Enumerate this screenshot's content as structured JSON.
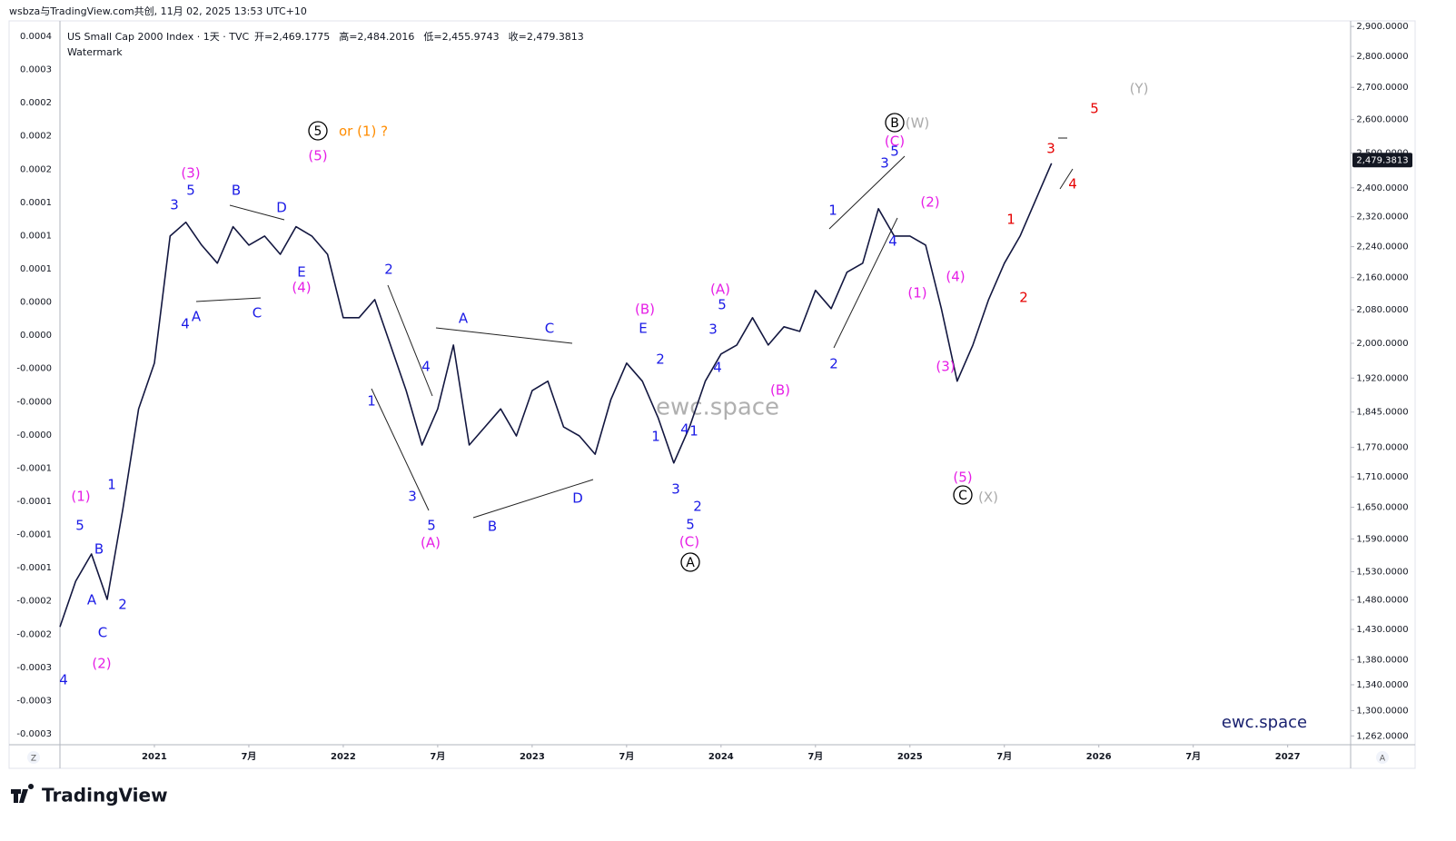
{
  "header": {
    "text": "wsbza与TradingView.com共创, 11月 02, 2025 13:53 UTC+10"
  },
  "chart_data": {
    "type": "line",
    "title": "US Small Cap 2000 Index · 1天 · TVC",
    "ohlc_labels": [
      "开=2,469.1775",
      "高=2,484.2016",
      "低=2,455.9743",
      "收=2,479.3813"
    ],
    "subtitle": "Watermark",
    "color": "#131740",
    "x": [
      "2020-07",
      "2020-08",
      "2020-09",
      "2020-10",
      "2020-11",
      "2020-12",
      "2021-01",
      "2021-02",
      "2021-03",
      "2021-04",
      "2021-05",
      "2021-06",
      "2021-07",
      "2021-08",
      "2021-09",
      "2021-10",
      "2021-11",
      "2021-12",
      "2022-01",
      "2022-02",
      "2022-03",
      "2022-04",
      "2022-05",
      "2022-06",
      "2022-07",
      "2022-08",
      "2022-09",
      "2022-10",
      "2022-11",
      "2022-12",
      "2023-01",
      "2023-02",
      "2023-03",
      "2023-04",
      "2023-05",
      "2023-06",
      "2023-07",
      "2023-08",
      "2023-09",
      "2023-10",
      "2023-11",
      "2023-12",
      "2024-01",
      "2024-02",
      "2024-03",
      "2024-04",
      "2024-05",
      "2024-06",
      "2024-07",
      "2024-08",
      "2024-09",
      "2024-10",
      "2024-11",
      "2024-12",
      "2025-01",
      "2025-02",
      "2025-03",
      "2025-04",
      "2025-05",
      "2025-06",
      "2025-07",
      "2025-08",
      "2025-09",
      "2025-10"
    ],
    "values": [
      1434,
      1513,
      1562,
      1481,
      1647,
      1852,
      1954,
      2268,
      2305,
      2244,
      2197,
      2293,
      2244,
      2268,
      2220,
      2293,
      2268,
      2220,
      2061,
      2061,
      2105,
      1996,
      1892,
      1775,
      1852,
      1996,
      1775,
      1813,
      1852,
      1794,
      1892,
      1913,
      1813,
      1794,
      1756,
      1872,
      1954,
      1913,
      1833,
      1738,
      1813,
      1913,
      1975,
      1996,
      2061,
      1996,
      2039,
      2028,
      2128,
      2083,
      2174,
      2197,
      2342,
      2268,
      2268,
      2244,
      2083,
      1913,
      1996,
      2105,
      2197,
      2268,
      2367,
      2470
    ],
    "xlim": [
      "2020-07",
      "2027-05"
    ],
    "xticks": [
      {
        "value": "2021-01",
        "label": "2021"
      },
      {
        "value": "2021-07",
        "label": "7月"
      },
      {
        "value": "2022-01",
        "label": "2022"
      },
      {
        "value": "2022-07",
        "label": "7月"
      },
      {
        "value": "2023-01",
        "label": "2023"
      },
      {
        "value": "2023-07",
        "label": "7月"
      },
      {
        "value": "2024-01",
        "label": "2024"
      },
      {
        "value": "2024-07",
        "label": "7月"
      },
      {
        "value": "2025-01",
        "label": "2025"
      },
      {
        "value": "2025-07",
        "label": "7月"
      },
      {
        "value": "2026-01",
        "label": "2026"
      },
      {
        "value": "2026-07",
        "label": "7月"
      },
      {
        "value": "2027-01",
        "label": "2027"
      }
    ],
    "ylim": [
      1249,
      2919
    ],
    "log_scale": true,
    "yticks": [
      {
        "value": 2900,
        "label": "2,900.0000"
      },
      {
        "value": 2800,
        "label": "2,800.0000"
      },
      {
        "value": 2700,
        "label": "2,700.0000"
      },
      {
        "value": 2600,
        "label": "2,600.0000"
      },
      {
        "value": 2500,
        "label": "2,500.0000"
      },
      {
        "value": 2400,
        "label": "2,400.0000"
      },
      {
        "value": 2320,
        "label": "2,320.0000"
      },
      {
        "value": 2240,
        "label": "2,240.0000"
      },
      {
        "value": 2160,
        "label": "2,160.0000"
      },
      {
        "value": 2080,
        "label": "2,080.0000"
      },
      {
        "value": 2000,
        "label": "2,000.0000"
      },
      {
        "value": 1920,
        "label": "1,920.0000"
      },
      {
        "value": 1845,
        "label": "1,845.0000"
      },
      {
        "value": 1770,
        "label": "1,770.0000"
      },
      {
        "value": 1710,
        "label": "1,710.0000"
      },
      {
        "value": 1650,
        "label": "1,650.0000"
      },
      {
        "value": 1590,
        "label": "1,590.0000"
      },
      {
        "value": 1530,
        "label": "1,530.0000"
      },
      {
        "value": 1480,
        "label": "1,480.0000"
      },
      {
        "value": 1430,
        "label": "1,430.0000"
      },
      {
        "value": 1380,
        "label": "1,380.0000"
      },
      {
        "value": 1340,
        "label": "1,340.0000"
      },
      {
        "value": 1300,
        "label": "1,300.0000"
      },
      {
        "value": 1262,
        "label": "1,262.0000"
      }
    ],
    "last_price": {
      "value": 2479.3813,
      "label": "2,479.3813"
    },
    "grid": false,
    "annotations": [
      {
        "text": "4",
        "color": "#1a1ae6"
      },
      {
        "text": "5",
        "color": "#1a1ae6"
      },
      {
        "text": "B",
        "color": "#1a1ae6"
      },
      {
        "text": "A",
        "color": "#1a1ae6"
      },
      {
        "text": "C",
        "color": "#1a1ae6"
      },
      {
        "text": "2",
        "color": "#1a1ae6"
      },
      {
        "text": "1",
        "color": "#1a1ae6"
      },
      {
        "text": "3",
        "color": "#1a1ae6"
      },
      {
        "text": "5",
        "color": "#1a1ae6"
      },
      {
        "text": "4",
        "color": "#1a1ae6"
      },
      {
        "text": "A",
        "color": "#1a1ae6"
      },
      {
        "text": "B",
        "color": "#1a1ae6"
      },
      {
        "text": "C",
        "color": "#1a1ae6"
      },
      {
        "text": "D",
        "color": "#1a1ae6"
      },
      {
        "text": "E",
        "color": "#1a1ae6"
      },
      {
        "text": "2",
        "color": "#1a1ae6"
      },
      {
        "text": "1",
        "color": "#1a1ae6"
      },
      {
        "text": "4",
        "color": "#1a1ae6"
      },
      {
        "text": "3",
        "color": "#1a1ae6"
      },
      {
        "text": "5",
        "color": "#1a1ae6"
      },
      {
        "text": "A",
        "color": "#1a1ae6"
      },
      {
        "text": "B",
        "color": "#1a1ae6"
      },
      {
        "text": "C",
        "color": "#1a1ae6"
      },
      {
        "text": "D",
        "color": "#1a1ae6"
      },
      {
        "text": "E",
        "color": "#1a1ae6"
      },
      {
        "text": "2",
        "color": "#1a1ae6"
      },
      {
        "text": "1",
        "color": "#1a1ae6"
      },
      {
        "text": "4",
        "color": "#1a1ae6"
      },
      {
        "text": "1",
        "color": "#1a1ae6"
      },
      {
        "text": "3",
        "color": "#1a1ae6"
      },
      {
        "text": "2",
        "color": "#1a1ae6"
      },
      {
        "text": "5",
        "color": "#1a1ae6"
      },
      {
        "text": "5",
        "color": "#1a1ae6"
      },
      {
        "text": "3",
        "color": "#1a1ae6"
      },
      {
        "text": "4",
        "color": "#1a1ae6"
      },
      {
        "text": "1",
        "color": "#1a1ae6"
      },
      {
        "text": "2",
        "color": "#1a1ae6"
      },
      {
        "text": "3",
        "color": "#1a1ae6"
      },
      {
        "text": "5",
        "color": "#1a1ae6"
      },
      {
        "text": "4",
        "color": "#1a1ae6"
      },
      {
        "text": "(1)",
        "color": "#e61ee6"
      },
      {
        "text": "(2)",
        "color": "#e61ee6"
      },
      {
        "text": "(3)",
        "color": "#e61ee6"
      },
      {
        "text": "(5)",
        "color": "#e61ee6"
      },
      {
        "text": "(4)",
        "color": "#e61ee6"
      },
      {
        "text": "(A)",
        "color": "#e61ee6"
      },
      {
        "text": "(B)",
        "color": "#e61ee6"
      },
      {
        "text": "(C)",
        "color": "#e61ee6"
      },
      {
        "text": "(A)",
        "color": "#e61ee6"
      },
      {
        "text": "(B)",
        "color": "#e61ee6"
      },
      {
        "text": "(C)",
        "color": "#e61ee6"
      },
      {
        "text": "(2)",
        "color": "#e61ee6"
      },
      {
        "text": "(1)",
        "color": "#e61ee6"
      },
      {
        "text": "(4)",
        "color": "#e61ee6"
      },
      {
        "text": "(3)",
        "color": "#e61ee6"
      },
      {
        "text": "(5)",
        "color": "#e61ee6"
      },
      {
        "text": "5",
        "color": "#000000",
        "circled": true
      },
      {
        "text": "A",
        "color": "#000000",
        "circled": true
      },
      {
        "text": "B",
        "color": "#000000",
        "circled": true
      },
      {
        "text": "C",
        "color": "#000000",
        "circled": true
      },
      {
        "text": "or (1) ?",
        "color": "#ff8c00"
      },
      {
        "text": "(W)",
        "color": "#aaaaaa"
      },
      {
        "text": "(X)",
        "color": "#aaaaaa"
      },
      {
        "text": "(Y)",
        "color": "#aaaaaa"
      },
      {
        "text": "3",
        "color": "#e60000"
      },
      {
        "text": "4",
        "color": "#e60000"
      },
      {
        "text": "1",
        "color": "#e60000"
      },
      {
        "text": "2",
        "color": "#e60000"
      },
      {
        "text": "5",
        "color": "#e60000"
      }
    ]
  },
  "left_scale": {
    "labels": [
      "0.0004",
      "0.0003",
      "0.0002",
      "0.0002",
      "0.0002",
      "0.0001",
      "0.0001",
      "0.0001",
      "0.0000",
      "0.0000",
      "-0.0000",
      "-0.0000",
      "-0.0000",
      "-0.0001",
      "-0.0001",
      "-0.0001",
      "-0.0001",
      "-0.0002",
      "-0.0002",
      "-0.0003",
      "-0.0003",
      "-0.0003"
    ]
  },
  "watermark": {
    "center": "ewc.space",
    "corner": "ewc.space"
  },
  "axis_buttons": {
    "left": "Z",
    "right": "A"
  },
  "footer": {
    "brand": "TradingView"
  }
}
